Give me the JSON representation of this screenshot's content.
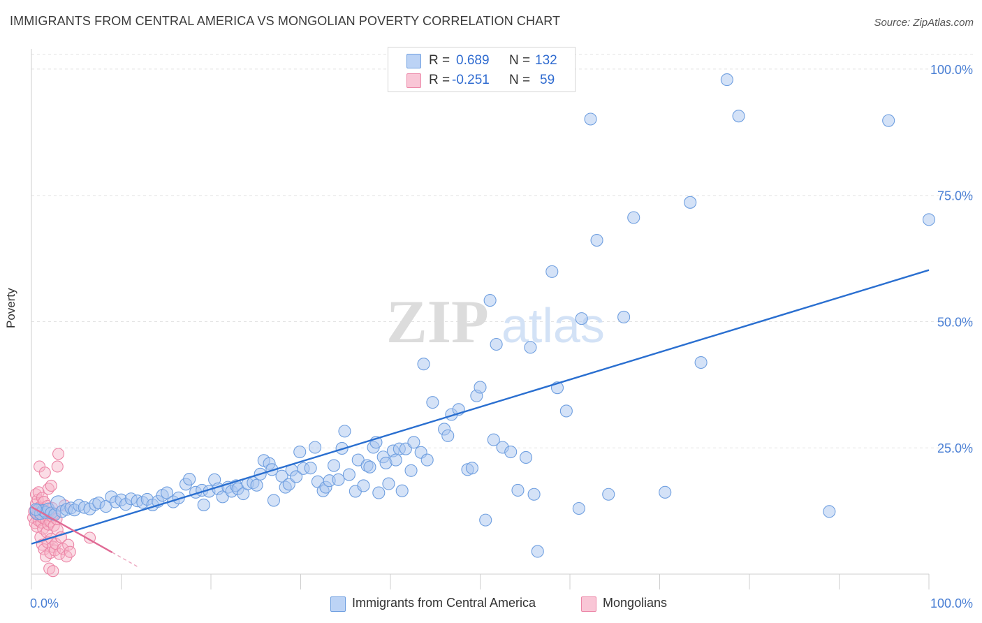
{
  "title": "IMMIGRANTS FROM CENTRAL AMERICA VS MONGOLIAN POVERTY CORRELATION CHART",
  "source": "Source: ZipAtlas.com",
  "colors": {
    "blue_fill": "#a9c6f0",
    "blue_stroke": "#6f9fe0",
    "blue_line": "#2a6fd0",
    "pink_fill": "#f7b3c8",
    "pink_stroke": "#ec86a7",
    "pink_line": "#e06a95",
    "grid": "#e3e3e3",
    "tick_text": "#4a7fd4"
  },
  "stats": {
    "blue": {
      "r_label": "R =",
      "r_value": "0.689",
      "n_label": "N =",
      "n_value": "132"
    },
    "pink": {
      "r_label": "R =",
      "r_value": "-0.251",
      "n_label": "N =",
      "n_value": "59"
    }
  },
  "legend": {
    "blue_label": "Immigrants from Central America",
    "pink_label": "Mongolians"
  },
  "chart_data": {
    "type": "scatter",
    "title": "IMMIGRANTS FROM CENTRAL AMERICA VS MONGOLIAN POVERTY CORRELATION CHART",
    "xlabel": "",
    "ylabel": "Poverty",
    "xlim": [
      0,
      100
    ],
    "ylim": [
      0,
      104
    ],
    "x_ticks": [
      0,
      10,
      20,
      30,
      40,
      50,
      60,
      70,
      80,
      90,
      100
    ],
    "x_tick_labels": {
      "0": "0.0%",
      "100": "100.0%"
    },
    "y_ticks": [
      25,
      50,
      75,
      100
    ],
    "y_tick_labels": [
      "25.0%",
      "50.0%",
      "75.0%",
      "100.0%"
    ],
    "grid": true,
    "watermark": "ZIPatlas",
    "series": [
      {
        "name": "Immigrants from Central America",
        "color": "#a9c6f0",
        "trend": {
          "x": [
            0,
            100
          ],
          "y": [
            6.0,
            60.2
          ]
        },
        "points": [
          [
            0.7,
            12.3
          ],
          [
            1.0,
            12.0
          ],
          [
            1.3,
            12.6
          ],
          [
            1.6,
            12.2
          ],
          [
            1.9,
            12.9
          ],
          [
            2.2,
            12.1
          ],
          [
            2.6,
            11.8
          ],
          [
            3.0,
            14.0
          ],
          [
            3.4,
            12.4
          ],
          [
            3.9,
            12.8
          ],
          [
            4.4,
            13.1
          ],
          [
            4.8,
            12.7
          ],
          [
            5.3,
            13.6
          ],
          [
            5.9,
            13.2
          ],
          [
            6.5,
            12.9
          ],
          [
            7.1,
            13.8
          ],
          [
            7.5,
            14.1
          ],
          [
            8.3,
            13.4
          ],
          [
            8.9,
            15.3
          ],
          [
            9.4,
            14.3
          ],
          [
            10.0,
            14.7
          ],
          [
            10.5,
            13.8
          ],
          [
            11.1,
            14.9
          ],
          [
            11.8,
            14.5
          ],
          [
            12.4,
            14.2
          ],
          [
            12.9,
            14.8
          ],
          [
            13.5,
            13.7
          ],
          [
            14.1,
            14.4
          ],
          [
            14.6,
            15.6
          ],
          [
            15.1,
            16.1
          ],
          [
            15.8,
            14.3
          ],
          [
            16.4,
            15.1
          ],
          [
            17.2,
            17.8
          ],
          [
            17.6,
            18.8
          ],
          [
            18.3,
            16.2
          ],
          [
            19.0,
            16.6
          ],
          [
            19.2,
            13.7
          ],
          [
            19.8,
            16.4
          ],
          [
            20.4,
            18.7
          ],
          [
            20.8,
            16.9
          ],
          [
            21.3,
            15.3
          ],
          [
            21.9,
            17.2
          ],
          [
            22.3,
            16.4
          ],
          [
            22.8,
            17.5
          ],
          [
            23.0,
            16.9
          ],
          [
            23.6,
            15.9
          ],
          [
            24.1,
            17.9
          ],
          [
            24.7,
            18.1
          ],
          [
            25.1,
            17.6
          ],
          [
            25.5,
            19.8
          ],
          [
            25.9,
            22.5
          ],
          [
            26.5,
            21.9
          ],
          [
            26.8,
            20.7
          ],
          [
            27.0,
            14.6
          ],
          [
            27.9,
            19.4
          ],
          [
            28.3,
            17.2
          ],
          [
            28.7,
            17.8
          ],
          [
            29.0,
            20.6
          ],
          [
            29.5,
            19.3
          ],
          [
            29.9,
            24.2
          ],
          [
            30.3,
            20.9
          ],
          [
            31.1,
            21.0
          ],
          [
            31.6,
            25.1
          ],
          [
            31.9,
            18.3
          ],
          [
            32.5,
            16.5
          ],
          [
            32.8,
            17.2
          ],
          [
            33.2,
            18.5
          ],
          [
            33.7,
            21.5
          ],
          [
            34.2,
            18.7
          ],
          [
            34.6,
            24.9
          ],
          [
            34.9,
            28.3
          ],
          [
            35.4,
            19.7
          ],
          [
            36.1,
            16.4
          ],
          [
            36.4,
            22.6
          ],
          [
            37.0,
            17.5
          ],
          [
            37.4,
            21.5
          ],
          [
            37.7,
            21.2
          ],
          [
            38.1,
            25.1
          ],
          [
            38.4,
            26.1
          ],
          [
            38.7,
            16.1
          ],
          [
            39.2,
            23.2
          ],
          [
            39.5,
            22.0
          ],
          [
            39.8,
            17.9
          ],
          [
            40.3,
            24.4
          ],
          [
            40.6,
            22.6
          ],
          [
            41.0,
            24.8
          ],
          [
            41.3,
            16.5
          ],
          [
            41.7,
            24.8
          ],
          [
            42.3,
            20.5
          ],
          [
            42.6,
            26.1
          ],
          [
            43.4,
            24.1
          ],
          [
            43.7,
            41.6
          ],
          [
            44.1,
            22.6
          ],
          [
            44.7,
            34.0
          ],
          [
            46.0,
            28.7
          ],
          [
            46.4,
            27.4
          ],
          [
            46.8,
            31.6
          ],
          [
            47.6,
            32.6
          ],
          [
            48.6,
            20.7
          ],
          [
            49.1,
            21.0
          ],
          [
            49.6,
            35.3
          ],
          [
            50.0,
            37.0
          ],
          [
            50.6,
            10.7
          ],
          [
            51.1,
            54.2
          ],
          [
            51.5,
            26.6
          ],
          [
            51.8,
            45.5
          ],
          [
            52.5,
            25.1
          ],
          [
            53.4,
            24.2
          ],
          [
            54.2,
            16.6
          ],
          [
            55.1,
            23.1
          ],
          [
            55.6,
            44.9
          ],
          [
            56.0,
            15.8
          ],
          [
            56.4,
            4.5
          ],
          [
            58.0,
            59.9
          ],
          [
            58.6,
            36.9
          ],
          [
            59.6,
            32.3
          ],
          [
            61.0,
            13.0
          ],
          [
            61.3,
            50.6
          ],
          [
            62.3,
            90.1
          ],
          [
            63.0,
            66.1
          ],
          [
            64.3,
            15.8
          ],
          [
            66.0,
            50.9
          ],
          [
            67.1,
            70.6
          ],
          [
            70.6,
            16.2
          ],
          [
            73.4,
            73.6
          ],
          [
            74.6,
            41.9
          ],
          [
            77.5,
            97.9
          ],
          [
            78.8,
            90.7
          ],
          [
            88.9,
            12.4
          ],
          [
            95.5,
            89.8
          ],
          [
            100.0,
            70.2
          ],
          [
            0.5,
            12.8
          ]
        ]
      },
      {
        "name": "Mongolians",
        "color": "#f7b3c8",
        "trend": {
          "x": [
            0,
            9.0
          ],
          "y": [
            13.3,
            4.3
          ]
        },
        "trend_extension": {
          "x": [
            9.0,
            12.0
          ],
          "y": [
            4.3,
            1.3
          ]
        },
        "points": [
          [
            0.2,
            11.2
          ],
          [
            0.3,
            12.4
          ],
          [
            0.4,
            10.1
          ],
          [
            0.5,
            13.9
          ],
          [
            0.5,
            15.8
          ],
          [
            0.6,
            9.4
          ],
          [
            0.6,
            12.0
          ],
          [
            0.7,
            14.7
          ],
          [
            0.7,
            11.8
          ],
          [
            0.8,
            10.6
          ],
          [
            0.8,
            16.2
          ],
          [
            0.9,
            13.2
          ],
          [
            0.9,
            21.3
          ],
          [
            1.0,
            11.5
          ],
          [
            1.0,
            7.3
          ],
          [
            1.1,
            12.9
          ],
          [
            1.1,
            10.2
          ],
          [
            1.2,
            15.1
          ],
          [
            1.2,
            5.8
          ],
          [
            1.3,
            11.1
          ],
          [
            1.3,
            9.0
          ],
          [
            1.4,
            14.3
          ],
          [
            1.4,
            4.9
          ],
          [
            1.5,
            12.6
          ],
          [
            1.5,
            20.1
          ],
          [
            1.6,
            10.8
          ],
          [
            1.6,
            3.5
          ],
          [
            1.7,
            11.7
          ],
          [
            1.7,
            8.3
          ],
          [
            1.8,
            13.5
          ],
          [
            1.8,
            6.3
          ],
          [
            1.9,
            9.8
          ],
          [
            1.9,
            16.9
          ],
          [
            2.0,
            12.2
          ],
          [
            2.0,
            1.1
          ],
          [
            2.1,
            10.4
          ],
          [
            2.1,
            4.2
          ],
          [
            2.2,
            17.5
          ],
          [
            2.2,
            7.0
          ],
          [
            2.3,
            11.4
          ],
          [
            2.3,
            13.1
          ],
          [
            2.4,
            5.4
          ],
          [
            2.4,
            0.6
          ],
          [
            2.5,
            9.6
          ],
          [
            2.6,
            12.0
          ],
          [
            2.6,
            4.7
          ],
          [
            2.7,
            6.0
          ],
          [
            2.8,
            10.9
          ],
          [
            2.9,
            21.3
          ],
          [
            2.9,
            8.8
          ],
          [
            3.0,
            23.8
          ],
          [
            3.1,
            4.0
          ],
          [
            3.3,
            7.3
          ],
          [
            3.5,
            5.0
          ],
          [
            3.7,
            13.6
          ],
          [
            3.9,
            3.5
          ],
          [
            4.1,
            5.8
          ],
          [
            4.3,
            4.4
          ],
          [
            6.5,
            7.2
          ]
        ]
      }
    ]
  }
}
